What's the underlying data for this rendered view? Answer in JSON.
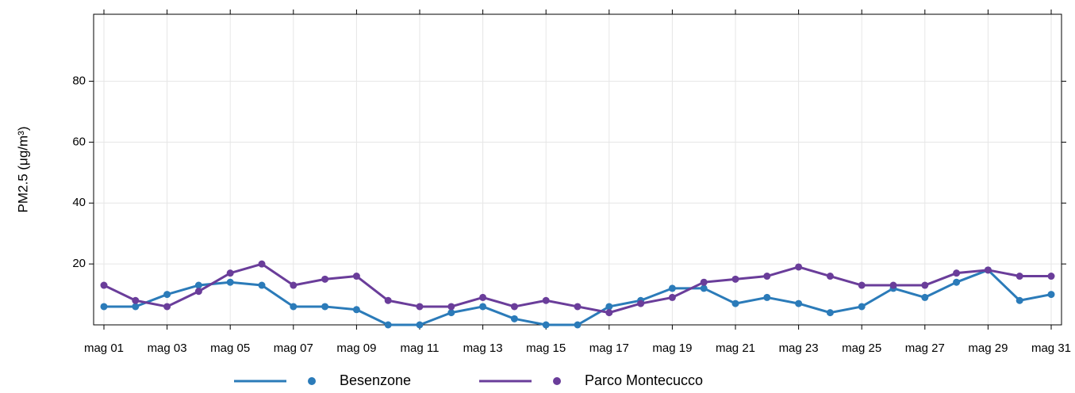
{
  "chart_data": {
    "type": "line",
    "y_label": "PM2.5 (μg/m³)",
    "categories": [
      "mag 01",
      null,
      "mag 03",
      null,
      "mag 05",
      null,
      "mag 07",
      null,
      "mag 09",
      null,
      "mag 11",
      null,
      "mag 13",
      null,
      "mag 15",
      null,
      "mag 17",
      null,
      "mag 19",
      null,
      "mag 21",
      null,
      "mag 23",
      null,
      "mag 25",
      null,
      "mag 27",
      null,
      "mag 29",
      null,
      "mag 31"
    ],
    "series": [
      {
        "name": "Besenzone",
        "color": "#2b7bb9",
        "values": [
          6,
          6,
          10,
          13,
          14,
          13,
          6,
          6,
          5,
          0,
          0,
          4,
          6,
          2,
          0,
          0,
          6,
          8,
          12,
          12,
          7,
          9,
          7,
          4,
          6,
          12,
          9,
          14,
          18,
          8,
          10
        ]
      },
      {
        "name": "Parco Montecucco",
        "color": "#6a3d9a",
        "values": [
          13,
          8,
          6,
          11,
          17,
          20,
          13,
          15,
          16,
          8,
          6,
          6,
          9,
          6,
          8,
          6,
          4,
          7,
          9,
          14,
          15,
          16,
          19,
          16,
          13,
          13,
          13,
          17,
          18,
          16,
          16
        ]
      }
    ],
    "ylim": [
      0,
      102
    ],
    "yticks": [
      20,
      40,
      60,
      80
    ],
    "grid": true
  }
}
